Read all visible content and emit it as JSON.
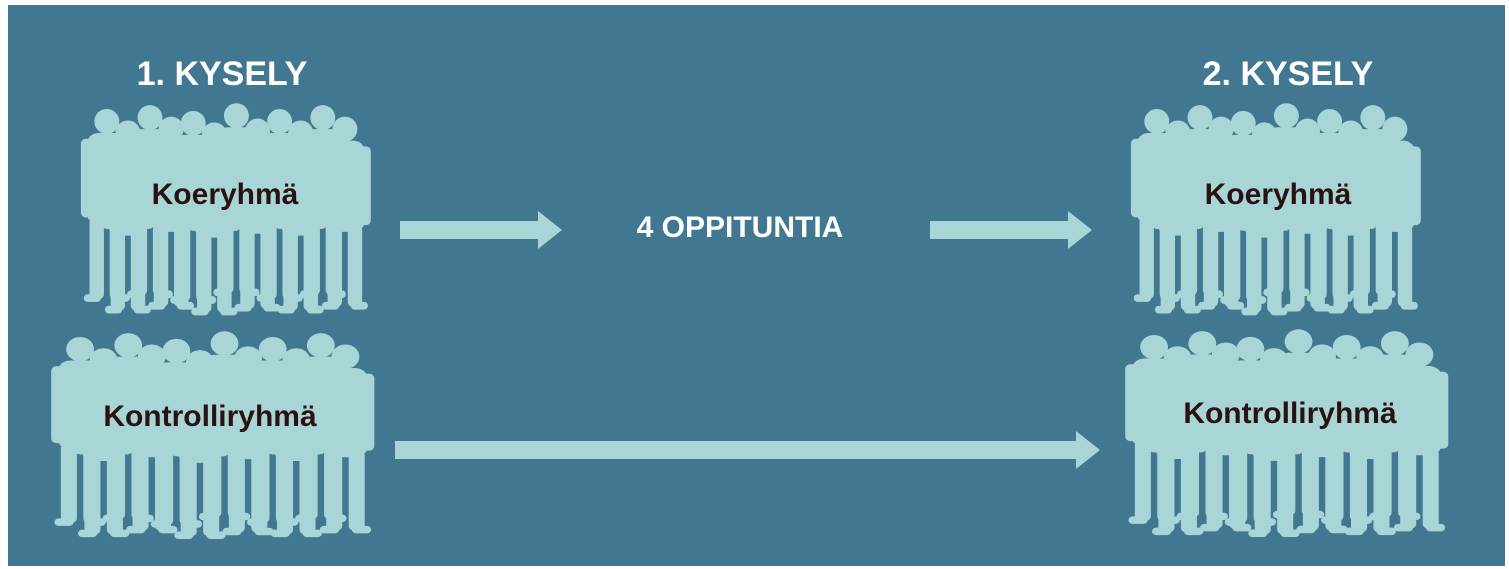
{
  "before": {
    "title": "1. KYSELY",
    "groups": [
      "Koeryhmä",
      "Kontrolliryhmä"
    ]
  },
  "intervention": "4 OPPITUNTIA",
  "after": {
    "title": "2. KYSELY",
    "groups": [
      "Koeryhmä",
      "Kontrolliryhmä"
    ]
  }
}
